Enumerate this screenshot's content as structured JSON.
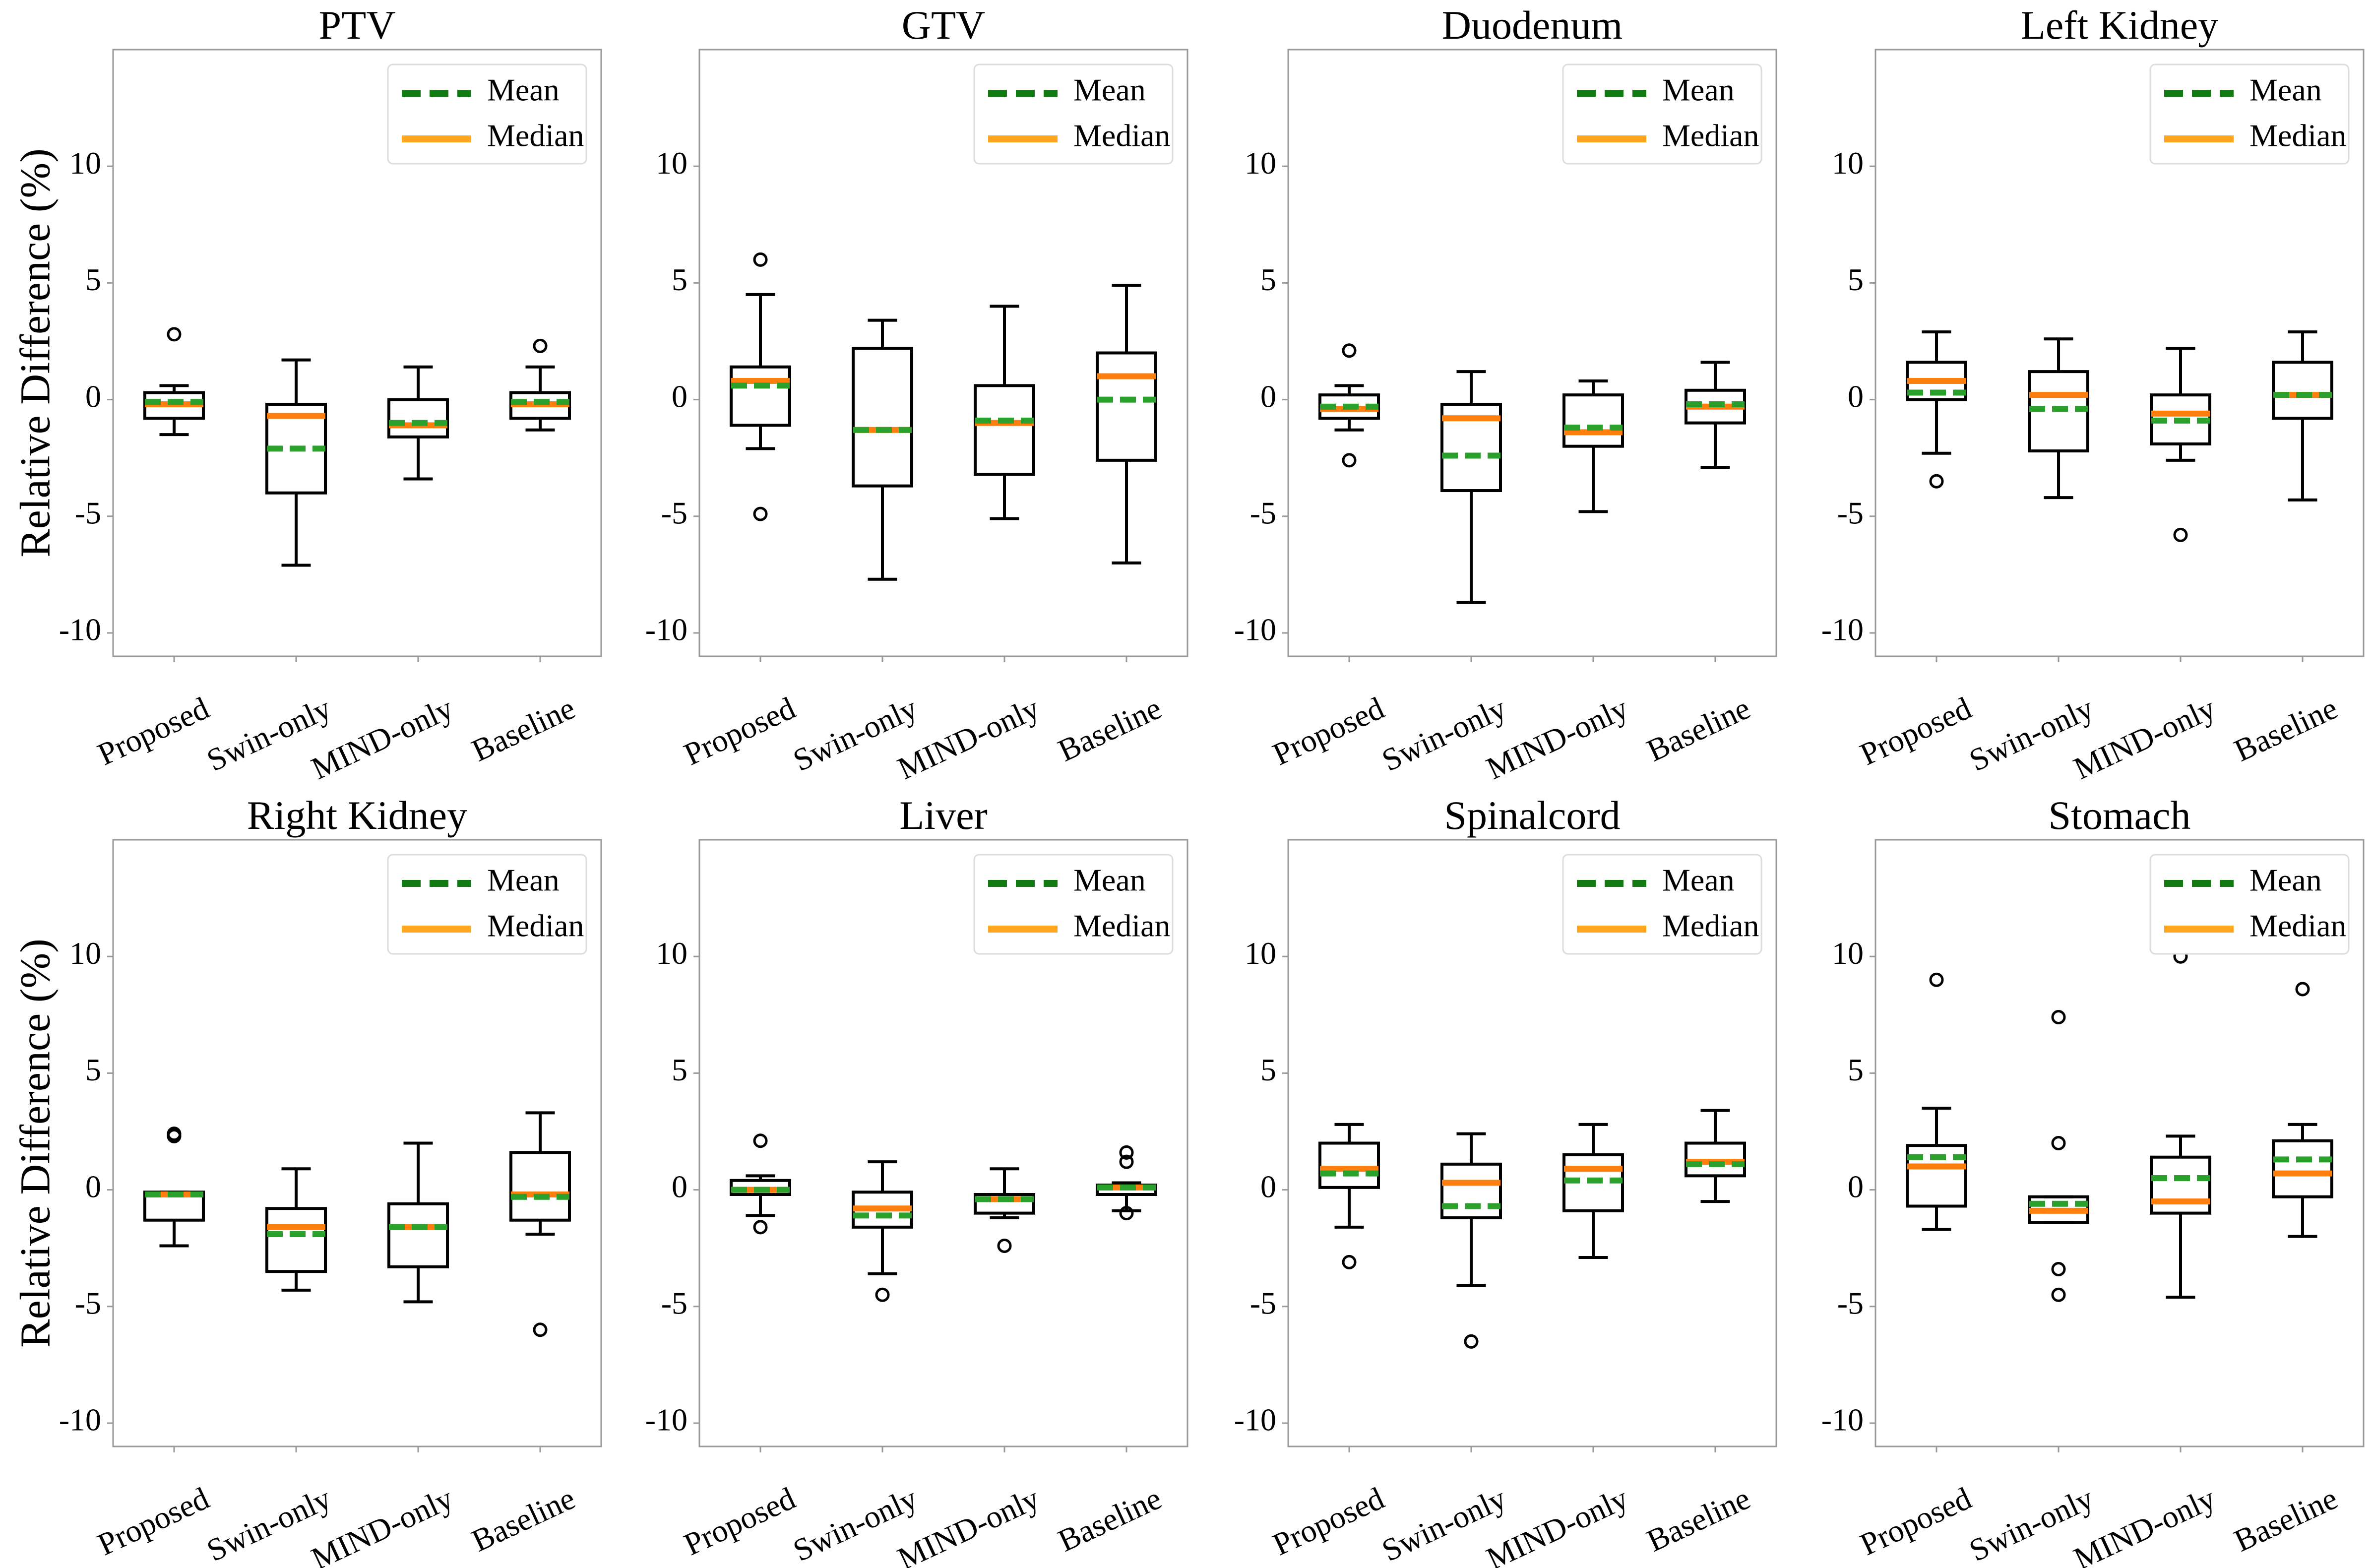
{
  "chart_data": {
    "type": "box",
    "layout": "2x4 grid",
    "ylabel": "Relative Difference (%)",
    "ylim": [
      -11,
      15
    ],
    "yticks": [
      -10,
      -5,
      0,
      5,
      10
    ],
    "categories": [
      "Proposed",
      "Swin-only",
      "MIND-only",
      "Baseline"
    ],
    "legend": {
      "position": "top-right",
      "entries": [
        "Mean",
        "Median"
      ]
    },
    "colors": {
      "mean": "#2ca02c",
      "mean_legend": "#117a11",
      "median": "#ff7f0e",
      "median_legend": "#ffa520",
      "box": "#000000",
      "frame": "#999999"
    },
    "panels": [
      {
        "title": "PTV",
        "stats": [
          {
            "whislo": -1.5,
            "q1": -0.8,
            "med": -0.2,
            "q3": 0.3,
            "whishi": 0.6,
            "mean": -0.1,
            "fliers": [
              2.8
            ]
          },
          {
            "whislo": -7.1,
            "q1": -4.0,
            "med": -0.7,
            "q3": -0.2,
            "whishi": 1.7,
            "mean": -2.1,
            "fliers": []
          },
          {
            "whislo": -3.4,
            "q1": -1.6,
            "med": -1.1,
            "q3": 0.0,
            "whishi": 1.4,
            "mean": -1.0,
            "fliers": []
          },
          {
            "whislo": -1.3,
            "q1": -0.8,
            "med": -0.2,
            "q3": 0.3,
            "whishi": 1.4,
            "mean": -0.1,
            "fliers": [
              2.3
            ]
          }
        ]
      },
      {
        "title": "GTV",
        "stats": [
          {
            "whislo": -2.1,
            "q1": -1.1,
            "med": 0.8,
            "q3": 1.4,
            "whishi": 4.5,
            "mean": 0.6,
            "fliers": [
              6.0,
              -4.9
            ]
          },
          {
            "whislo": -7.7,
            "q1": -3.7,
            "med": -1.3,
            "q3": 2.2,
            "whishi": 3.4,
            "mean": -1.3,
            "fliers": []
          },
          {
            "whislo": -5.1,
            "q1": -3.2,
            "med": -1.0,
            "q3": 0.6,
            "whishi": 4.0,
            "mean": -0.9,
            "fliers": []
          },
          {
            "whislo": -7.0,
            "q1": -2.6,
            "med": 1.0,
            "q3": 2.0,
            "whishi": 4.9,
            "mean": 0.0,
            "fliers": []
          }
        ]
      },
      {
        "title": "Duodenum",
        "stats": [
          {
            "whislo": -1.3,
            "q1": -0.8,
            "med": -0.4,
            "q3": 0.2,
            "whishi": 0.6,
            "mean": -0.3,
            "fliers": [
              2.1,
              -2.6
            ]
          },
          {
            "whislo": -8.7,
            "q1": -3.9,
            "med": -0.8,
            "q3": -0.2,
            "whishi": 1.2,
            "mean": -2.4,
            "fliers": []
          },
          {
            "whislo": -4.8,
            "q1": -2.0,
            "med": -1.4,
            "q3": 0.2,
            "whishi": 0.8,
            "mean": -1.2,
            "fliers": []
          },
          {
            "whislo": -2.9,
            "q1": -1.0,
            "med": -0.3,
            "q3": 0.4,
            "whishi": 1.6,
            "mean": -0.2,
            "fliers": []
          }
        ]
      },
      {
        "title": "Left Kidney",
        "stats": [
          {
            "whislo": -2.3,
            "q1": 0.0,
            "med": 0.8,
            "q3": 1.6,
            "whishi": 2.9,
            "mean": 0.3,
            "fliers": [
              -3.5
            ]
          },
          {
            "whislo": -4.2,
            "q1": -2.2,
            "med": 0.2,
            "q3": 1.2,
            "whishi": 2.6,
            "mean": -0.4,
            "fliers": []
          },
          {
            "whislo": -2.6,
            "q1": -1.9,
            "med": -0.6,
            "q3": 0.2,
            "whishi": 2.2,
            "mean": -0.9,
            "fliers": [
              -5.8
            ]
          },
          {
            "whislo": -4.3,
            "q1": -0.8,
            "med": 0.2,
            "q3": 1.6,
            "whishi": 2.9,
            "mean": 0.2,
            "fliers": []
          }
        ]
      },
      {
        "title": "Right Kidney",
        "stats": [
          {
            "whislo": -2.4,
            "q1": -1.3,
            "med": -0.2,
            "q3": -0.1,
            "whishi": -0.1,
            "mean": -0.2,
            "fliers": [
              2.3,
              2.4
            ]
          },
          {
            "whislo": -4.3,
            "q1": -3.5,
            "med": -1.6,
            "q3": -0.8,
            "whishi": 0.9,
            "mean": -1.9,
            "fliers": []
          },
          {
            "whislo": -4.8,
            "q1": -3.3,
            "med": -1.6,
            "q3": -0.6,
            "whishi": 2.0,
            "mean": -1.6,
            "fliers": []
          },
          {
            "whislo": -1.9,
            "q1": -1.3,
            "med": -0.2,
            "q3": 1.6,
            "whishi": 3.3,
            "mean": -0.3,
            "fliers": [
              -6.0
            ]
          }
        ]
      },
      {
        "title": "Liver",
        "stats": [
          {
            "whislo": -1.1,
            "q1": -0.2,
            "med": 0.0,
            "q3": 0.4,
            "whishi": 0.6,
            "mean": 0.0,
            "fliers": [
              2.1,
              -1.6
            ]
          },
          {
            "whislo": -3.6,
            "q1": -1.6,
            "med": -0.8,
            "q3": -0.1,
            "whishi": 1.2,
            "mean": -1.1,
            "fliers": [
              -4.5
            ]
          },
          {
            "whislo": -1.2,
            "q1": -1.0,
            "med": -0.4,
            "q3": -0.2,
            "whishi": 0.9,
            "mean": -0.4,
            "fliers": [
              -2.4
            ]
          },
          {
            "whislo": -0.9,
            "q1": -0.2,
            "med": 0.1,
            "q3": 0.2,
            "whishi": 0.3,
            "mean": 0.1,
            "fliers": [
              1.2,
              1.6,
              -1.0
            ]
          }
        ]
      },
      {
        "title": "Spinalcord",
        "stats": [
          {
            "whislo": -1.6,
            "q1": 0.1,
            "med": 0.9,
            "q3": 2.0,
            "whishi": 2.8,
            "mean": 0.7,
            "fliers": [
              -3.1
            ]
          },
          {
            "whislo": -4.1,
            "q1": -1.2,
            "med": 0.3,
            "q3": 1.1,
            "whishi": 2.4,
            "mean": -0.7,
            "fliers": [
              -6.5
            ]
          },
          {
            "whislo": -2.9,
            "q1": -0.9,
            "med": 0.9,
            "q3": 1.5,
            "whishi": 2.8,
            "mean": 0.4,
            "fliers": []
          },
          {
            "whislo": -0.5,
            "q1": 0.6,
            "med": 1.2,
            "q3": 2.0,
            "whishi": 3.4,
            "mean": 1.1,
            "fliers": []
          }
        ]
      },
      {
        "title": "Stomach",
        "stats": [
          {
            "whislo": -1.7,
            "q1": -0.7,
            "med": 1.0,
            "q3": 1.9,
            "whishi": 3.5,
            "mean": 1.4,
            "fliers": [
              9.0
            ]
          },
          {
            "whislo": -1.4,
            "q1": -1.4,
            "med": -0.9,
            "q3": -0.3,
            "whishi": -0.3,
            "mean": -0.6,
            "fliers": [
              7.4,
              2.0,
              -3.4,
              -4.5
            ]
          },
          {
            "whislo": -4.6,
            "q1": -1.0,
            "med": -0.5,
            "q3": 1.4,
            "whishi": 2.3,
            "mean": 0.5,
            "fliers": [
              10.0
            ]
          },
          {
            "whislo": -2.0,
            "q1": -0.3,
            "med": 0.7,
            "q3": 2.1,
            "whishi": 2.8,
            "mean": 1.3,
            "fliers": [
              8.6
            ]
          }
        ]
      }
    ]
  }
}
